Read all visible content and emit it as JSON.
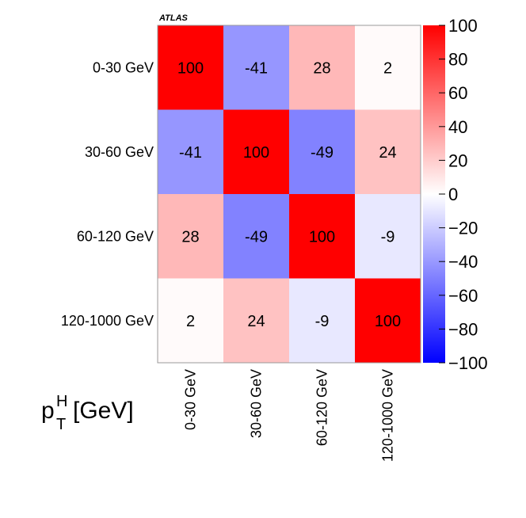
{
  "chart_data": {
    "type": "heatmap",
    "experiment_label": "ATLAS",
    "x_categories": [
      "0-30 GeV",
      "30-60 GeV",
      "60-120 GeV",
      "120-1000 GeV"
    ],
    "y_categories": [
      "0-30 GeV",
      "30-60 GeV",
      "60-120 GeV",
      "120-1000 GeV"
    ],
    "xlabel": "p_T^H [GeV]",
    "xlabel_parts": {
      "base": "p",
      "sup": "H",
      "sub": "T",
      "unit": "[GeV]"
    },
    "values": [
      [
        100,
        -41,
        28,
        2
      ],
      [
        -41,
        100,
        -49,
        24
      ],
      [
        28,
        -49,
        100,
        -9
      ],
      [
        2,
        24,
        -9,
        100
      ]
    ],
    "zlim": [
      -100,
      100
    ],
    "colorbar_ticks": [
      100,
      80,
      60,
      40,
      20,
      0,
      -20,
      -40,
      -60,
      -80,
      -100
    ],
    "colorbar_tick_labels": [
      "100",
      "80",
      "60",
      "40",
      "20",
      "0",
      "−20",
      "−40",
      "−60",
      "−80",
      "−100"
    ],
    "colors": {
      "negative": "#0000ff",
      "zero": "#ffffff",
      "positive": "#ff0000"
    },
    "colorbar_position": "right"
  }
}
